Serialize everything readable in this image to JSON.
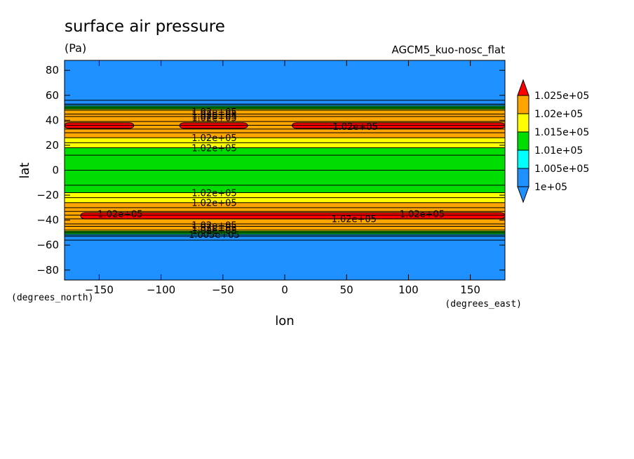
{
  "chart_data": {
    "type": "heatmap",
    "title": "surface air pressure",
    "units": "(Pa)",
    "model_label": "AGCM5_kuo-nosc_flat",
    "xlabel": "lon",
    "ylabel": "lat",
    "x_units": "(degrees_east)",
    "y_units": "(degrees_north)",
    "xlim": [
      -178,
      178
    ],
    "ylim": [
      -88,
      88
    ],
    "x_ticks": [
      -150,
      -100,
      -50,
      0,
      50,
      100,
      150
    ],
    "y_ticks": [
      -80,
      -60,
      -40,
      -20,
      0,
      20,
      40,
      60,
      80
    ],
    "colors": {
      "lt_100000": "#1e90ff",
      "100000_100500": "#1e90ff",
      "100500_101000": "#00ffff",
      "101000_101500": "#00dd00",
      "101500_102000": "#ffff00",
      "102000_102500": "#ffa500",
      "gt_102500": "#ff0000"
    },
    "levels": [
      "1e+05",
      "1.005e+05",
      "1.01e+05",
      "1.015e+05",
      "1.02e+05",
      "1.025e+05"
    ],
    "legend_labels": [
      "1.025e+05",
      "1.02e+05",
      "1.015e+05",
      "1.01e+05",
      "1.005e+05",
      "1e+05"
    ],
    "zonal_profile": {
      "lat": [
        -88,
        -56,
        -53,
        -52,
        -51,
        -50,
        -49,
        -48,
        -45,
        -43,
        -39,
        -36,
        -33,
        -30,
        -26,
        -22,
        -18,
        -12,
        0,
        12,
        18,
        22,
        26,
        30,
        33,
        36,
        39,
        43,
        45,
        48,
        49,
        50,
        51,
        52,
        53,
        56,
        88
      ],
      "pressure": [
        98500,
        99500,
        100200,
        100600,
        101000,
        101300,
        101600,
        101900,
        102150,
        102300,
        102420,
        102500,
        102400,
        102200,
        102000,
        101800,
        101500,
        101300,
        101200,
        101300,
        101500,
        101800,
        102000,
        102200,
        102400,
        102480,
        102420,
        102300,
        102150,
        101900,
        101600,
        101300,
        101000,
        100600,
        100200,
        99500,
        98500
      ]
    },
    "red_cells": [
      {
        "lat_range": [
          33.5,
          38
        ],
        "lon_range": [
          -178,
          -122
        ]
      },
      {
        "lat_range": [
          33.5,
          38
        ],
        "lon_range": [
          -85,
          -30
        ]
      },
      {
        "lat_range": [
          33.5,
          38
        ],
        "lon_range": [
          6,
          178
        ]
      },
      {
        "lat_range": [
          -39,
          -34
        ],
        "lon_range": [
          -165,
          178
        ]
      }
    ],
    "contour_labels": [
      {
        "text": "1.02e+05",
        "lon": -57,
        "lat": 46.5
      },
      {
        "text": "1.02e+05",
        "lon": -57,
        "lat": 44.5
      },
      {
        "text": "1.02e+05",
        "lon": -57,
        "lat": 43
      },
      {
        "text": "1.02e+05",
        "lon": -57,
        "lat": 41.5
      },
      {
        "text": "1.02e+05",
        "lon": 57,
        "lat": 34.5
      },
      {
        "text": "1.02e+05",
        "lon": -57,
        "lat": 25.5
      },
      {
        "text": "1.02e+05",
        "lon": -57,
        "lat": 17.5
      },
      {
        "text": "1.02e+05",
        "lon": -57,
        "lat": -18.5
      },
      {
        "text": "1.02e+05",
        "lon": -57,
        "lat": -26.5
      },
      {
        "text": "1.02e+05",
        "lon": -133,
        "lat": -35.5
      },
      {
        "text": "1.02e+05",
        "lon": 56,
        "lat": -39.5
      },
      {
        "text": "1.02e+05",
        "lon": 111,
        "lat": -35.5
      },
      {
        "text": "1.02e+05",
        "lon": -57,
        "lat": -44.5
      },
      {
        "text": "1.02e+05",
        "lon": -57,
        "lat": -46.5
      },
      {
        "text": "1.02e+05",
        "lon": -57,
        "lat": -48.5
      },
      {
        "text": "1.005e+05",
        "lon": -57,
        "lat": -52
      }
    ]
  }
}
